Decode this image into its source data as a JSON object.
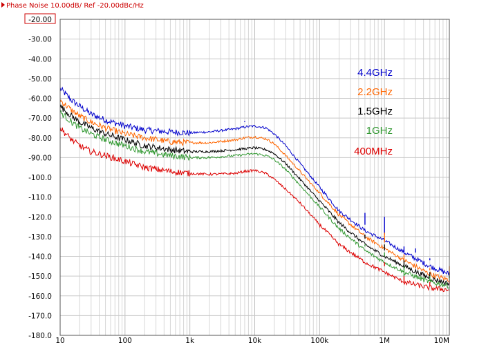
{
  "header": {
    "title": "Phase Noise 10.00dB/ Ref -20.00dBc/Hz"
  },
  "chart_data": {
    "type": "line",
    "title": "Phase Noise 10.00dB/ Ref -20.00dBc/Hz",
    "xlabel": "",
    "ylabel": "",
    "x_scale": "log",
    "xlim": [
      10,
      10000000
    ],
    "ylim": [
      -180,
      -20
    ],
    "grid": true,
    "legend_position": "top-right",
    "x_ticks": [
      {
        "value": 10,
        "label": "10"
      },
      {
        "value": 100,
        "label": "100"
      },
      {
        "value": 1000,
        "label": "1k"
      },
      {
        "value": 10000,
        "label": "10k"
      },
      {
        "value": 100000,
        "label": "100k"
      },
      {
        "value": 1000000,
        "label": "1M"
      },
      {
        "value": 10000000,
        "label": "10M"
      }
    ],
    "y_ticks": [
      {
        "value": -20,
        "label": "-20.00"
      },
      {
        "value": -30,
        "label": "-30.00"
      },
      {
        "value": -40,
        "label": "-40.00"
      },
      {
        "value": -50,
        "label": "-50.00"
      },
      {
        "value": -60,
        "label": "-60.00"
      },
      {
        "value": -70,
        "label": "-70.00"
      },
      {
        "value": -80,
        "label": "-80.00"
      },
      {
        "value": -90,
        "label": "-90.00"
      },
      {
        "value": -100,
        "label": "-100.0"
      },
      {
        "value": -110,
        "label": "-110.0"
      },
      {
        "value": -120,
        "label": "-120.0"
      },
      {
        "value": -130,
        "label": "-130.0"
      },
      {
        "value": -140,
        "label": "-140.0"
      },
      {
        "value": -150,
        "label": "-150.0"
      },
      {
        "value": -160,
        "label": "-160.0"
      },
      {
        "value": -170,
        "label": "-170.0"
      },
      {
        "value": -180,
        "label": "-180.0"
      }
    ],
    "series": [
      {
        "name": "4.4GHz",
        "color": "#0000cc",
        "points": [
          [
            10,
            -55
          ],
          [
            15,
            -61
          ],
          [
            20,
            -64
          ],
          [
            30,
            -68
          ],
          [
            50,
            -71
          ],
          [
            100,
            -74
          ],
          [
            200,
            -76
          ],
          [
            500,
            -77
          ],
          [
            1000,
            -77.5
          ],
          [
            2000,
            -77
          ],
          [
            5000,
            -75.5
          ],
          [
            7000,
            -74.5
          ],
          [
            10000,
            -74
          ],
          [
            15000,
            -75
          ],
          [
            20000,
            -78
          ],
          [
            30000,
            -84
          ],
          [
            50000,
            -93
          ],
          [
            100000,
            -105
          ],
          [
            200000,
            -117
          ],
          [
            500000,
            -127
          ],
          [
            1000000,
            -132
          ],
          [
            2000000,
            -138
          ],
          [
            5000000,
            -145
          ],
          [
            10000000,
            -149
          ]
        ],
        "spurs": [
          [
            7000,
            -72
          ],
          [
            500000,
            -118
          ],
          [
            1000000,
            -120
          ],
          [
            2000000,
            -138
          ],
          [
            3000000,
            -136
          ],
          [
            5000000,
            -141
          ]
        ]
      },
      {
        "name": "2.2GHz",
        "color": "#ff6600",
        "points": [
          [
            10,
            -61
          ],
          [
            15,
            -66
          ],
          [
            20,
            -69
          ],
          [
            30,
            -72
          ],
          [
            50,
            -75
          ],
          [
            100,
            -78
          ],
          [
            200,
            -80
          ],
          [
            500,
            -82
          ],
          [
            1000,
            -82.5
          ],
          [
            2000,
            -82.5
          ],
          [
            5000,
            -81
          ],
          [
            7000,
            -80
          ],
          [
            10000,
            -79.5
          ],
          [
            15000,
            -80.5
          ],
          [
            20000,
            -83
          ],
          [
            30000,
            -89
          ],
          [
            50000,
            -97
          ],
          [
            100000,
            -108
          ],
          [
            200000,
            -119
          ],
          [
            500000,
            -130
          ],
          [
            1000000,
            -136
          ],
          [
            2000000,
            -142
          ],
          [
            5000000,
            -149
          ],
          [
            10000000,
            -152
          ]
        ],
        "spurs": [
          [
            500000,
            -127
          ],
          [
            1000000,
            -128
          ],
          [
            2000000,
            -143
          ],
          [
            5000000,
            -147
          ],
          [
            10000000,
            -145
          ]
        ]
      },
      {
        "name": "1.5GHz",
        "color": "#000000",
        "points": [
          [
            10,
            -64
          ],
          [
            15,
            -69
          ],
          [
            20,
            -72
          ],
          [
            30,
            -75
          ],
          [
            50,
            -78
          ],
          [
            100,
            -81
          ],
          [
            200,
            -84
          ],
          [
            500,
            -86
          ],
          [
            1000,
            -87
          ],
          [
            2000,
            -87
          ],
          [
            5000,
            -86
          ],
          [
            7000,
            -85.5
          ],
          [
            10000,
            -85
          ],
          [
            15000,
            -86
          ],
          [
            20000,
            -88
          ],
          [
            30000,
            -93
          ],
          [
            50000,
            -101
          ],
          [
            100000,
            -112
          ],
          [
            200000,
            -123
          ],
          [
            500000,
            -134
          ],
          [
            1000000,
            -140
          ],
          [
            2000000,
            -145
          ],
          [
            5000000,
            -151
          ],
          [
            10000000,
            -154
          ]
        ],
        "spurs": [
          [
            500000,
            -129
          ],
          [
            1000000,
            -134
          ],
          [
            2000000,
            -146
          ],
          [
            5000000,
            -150
          ],
          [
            10000000,
            -148
          ]
        ]
      },
      {
        "name": "1GHz",
        "color": "#339933",
        "points": [
          [
            10,
            -67
          ],
          [
            15,
            -72
          ],
          [
            20,
            -75
          ],
          [
            30,
            -78
          ],
          [
            50,
            -81
          ],
          [
            100,
            -84
          ],
          [
            200,
            -87
          ],
          [
            500,
            -89
          ],
          [
            1000,
            -90
          ],
          [
            2000,
            -90
          ],
          [
            5000,
            -89
          ],
          [
            7000,
            -88.5
          ],
          [
            10000,
            -88
          ],
          [
            15000,
            -89
          ],
          [
            20000,
            -91
          ],
          [
            30000,
            -96
          ],
          [
            50000,
            -104
          ],
          [
            100000,
            -115
          ],
          [
            200000,
            -126
          ],
          [
            500000,
            -137
          ],
          [
            1000000,
            -143
          ],
          [
            2000000,
            -148
          ],
          [
            5000000,
            -153
          ],
          [
            10000000,
            -155
          ]
        ],
        "spurs": [
          [
            500000,
            -135
          ],
          [
            1000000,
            -138
          ],
          [
            2000000,
            -150
          ],
          [
            5000000,
            -152
          ],
          [
            10000000,
            -150
          ]
        ]
      },
      {
        "name": "400MHz",
        "color": "#dd0000",
        "points": [
          [
            10,
            -75
          ],
          [
            15,
            -81
          ],
          [
            20,
            -84
          ],
          [
            30,
            -87
          ],
          [
            50,
            -89
          ],
          [
            100,
            -92
          ],
          [
            200,
            -95
          ],
          [
            500,
            -97
          ],
          [
            1000,
            -98
          ],
          [
            2000,
            -98.5
          ],
          [
            5000,
            -98
          ],
          [
            7000,
            -97
          ],
          [
            10000,
            -96.5
          ],
          [
            15000,
            -98
          ],
          [
            20000,
            -101
          ],
          [
            30000,
            -106
          ],
          [
            50000,
            -113
          ],
          [
            100000,
            -124
          ],
          [
            200000,
            -134
          ],
          [
            500000,
            -143
          ],
          [
            1000000,
            -148
          ],
          [
            2000000,
            -153
          ],
          [
            5000000,
            -156
          ],
          [
            10000000,
            -157
          ]
        ],
        "spurs": [
          [
            500000,
            -140
          ],
          [
            1000000,
            -143
          ],
          [
            2000000,
            -153
          ],
          [
            5000000,
            -155
          ],
          [
            10000000,
            -152
          ]
        ]
      }
    ]
  }
}
